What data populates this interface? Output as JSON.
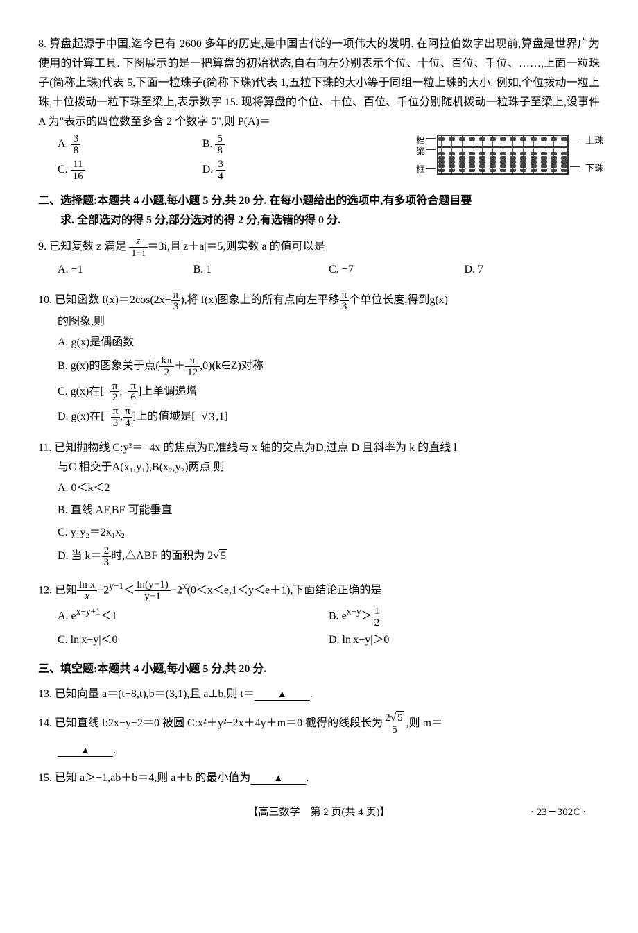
{
  "q8": {
    "stem": "8. 算盘起源于中国,迄今已有 2600 多年的历史,是中国古代的一项伟大的发明. 在阿拉伯数字出现前,算盘是世界广为使用的计算工具. 下图展示的是一把算盘的初始状态,自右向左分别表示个位、十位、百位、千位、……,上面一粒珠子(简称上珠)代表 5,下面一粒珠子(简称下珠)代表 1,五粒下珠的大小等于同组一粒上珠的大小. 例如,个位拨动一粒上珠,十位拨动一粒下珠至梁上,表示数字 15. 现将算盘的个位、十位、百位、千位分别随机拨动一粒珠子至梁上,设事件 A 为\"表示的四位数至多含 2 个数字 5\",则 P(A)＝",
    "A": "A. ",
    "A_frac_n": "3",
    "A_frac_d": "8",
    "B": "B. ",
    "B_frac_n": "5",
    "B_frac_d": "8",
    "C": "C. ",
    "C_frac_n": "11",
    "C_frac_d": "16",
    "D": "D. ",
    "D_frac_n": "3",
    "D_frac_d": "4",
    "labels": {
      "dang": "档",
      "liang": "梁",
      "kuang": "框",
      "up": "上珠",
      "down": "下珠"
    }
  },
  "section2": {
    "line1": "二、选择题:本题共 4 小题,每小题 5 分,共 20 分. 在每小题给出的选项中,有多项符合题目要",
    "line2": "求. 全部选对的得 5 分,部分选对的得 2 分,有选错的得 0 分."
  },
  "q9": {
    "stem_a": "9. 已知复数 z 满足 ",
    "frac_n": "z",
    "frac_d": "1−i",
    "stem_b": "＝3i,且|z＋a|＝5,则实数 a 的值可以是",
    "A": "A. −1",
    "B": "B. 1",
    "C": "C. −7",
    "D": "D. 7"
  },
  "q10": {
    "stem_a": "10. 已知函数 f(x)＝2cos(2x−",
    "frac1_n": "π",
    "frac1_d": "3",
    "stem_b": "),将 f(x)图象上的所有点向左平移",
    "frac2_n": "π",
    "frac2_d": "3",
    "stem_c": "个单位长度,得到g(x)",
    "stem_d": "的图象,则",
    "A": "A. g(x)是偶函数",
    "B_a": "B. g(x)的图象关于点(",
    "B_frac1_n": "kπ",
    "B_frac1_d": "2",
    "B_b": "＋",
    "B_frac2_n": "π",
    "B_frac2_d": "12",
    "B_c": ",0)(k∈Z)对称",
    "C_a": "C. g(x)在[−",
    "C_frac1_n": "π",
    "C_frac1_d": "2",
    "C_b": ",−",
    "C_frac2_n": "π",
    "C_frac2_d": "6",
    "C_c": "]上单调递增",
    "D_a": "D. g(x)在[−",
    "D_frac1_n": "π",
    "D_frac1_d": "3",
    "D_b": ",",
    "D_frac2_n": "π",
    "D_frac2_d": "4",
    "D_c": "]上的值域是[−",
    "D_sqrt": "3",
    "D_d": ",1]"
  },
  "q11": {
    "stem1": "11. 已知抛物线 C:y²＝−4x 的焦点为F,准线与 x 轴的交点为D,过点 D 且斜率为 k 的直线 l",
    "stem2": "与C 相交于A(x₁,y₁),B(x₂,y₂)两点,则",
    "A": "A. 0＜k＜2",
    "B": "B. 直线 AF,BF 可能垂直",
    "C": "C. y₁y₂＝2x₁x₂",
    "D_a": "D. 当 k＝",
    "D_frac_n": "2",
    "D_frac_d": "3",
    "D_b": "时,△ABF 的面积为 2",
    "D_sqrt": "5"
  },
  "q12": {
    "stem_a": "12. 已知",
    "f1_n": "ln x",
    "f1_d": "x",
    "stem_b": "−2",
    "exp1": "y−1",
    "stem_c": "＜",
    "f2_n": "ln(y−1)",
    "f2_d": "y−1",
    "stem_d": "−2",
    "exp2": "x",
    "stem_e": "(0＜x＜e,1＜y＜e＋1),下面结论正确的是",
    "A_a": "A. e",
    "A_exp": "x−y+1",
    "A_b": "＜1",
    "B_a": "B. e",
    "B_exp": "x−y",
    "B_b": "＞",
    "B_frac_n": "1",
    "B_frac_d": "2",
    "C": "C. ln|x−y|＜0",
    "D": "D. ln|x−y|＞0"
  },
  "section3": "三、填空题:本题共 4 小题,每小题 5 分,共 20 分.",
  "q13": {
    "stem": "13. 已知向量 a＝(t−8,t),b＝(3,1),且 a⊥b,则 t＝",
    "end": "."
  },
  "q14": {
    "stem_a": "14. 已知直线 l:2x−y−2＝0 被圆 C:x²＋y²−2x＋4y＋m＝0 截得的线段长为",
    "frac_n_a": "2",
    "frac_sqrt": "5",
    "frac_d": "5",
    "stem_b": ",则 m＝",
    "end": "."
  },
  "q15": {
    "stem": "15. 已知 a＞−1,ab＋b＝4,则 a＋b 的最小值为",
    "end": "."
  },
  "footer": {
    "center": "【高三数学　第 2 页(共 4 页)】",
    "right": "· 23－302C ·"
  },
  "triangle": "▲"
}
